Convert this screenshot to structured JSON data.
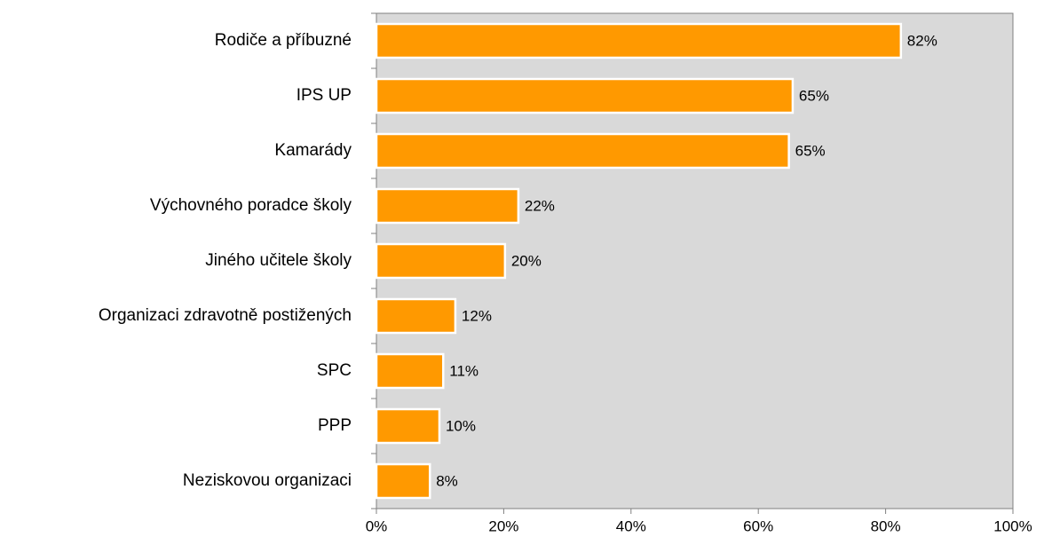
{
  "chart_data": {
    "type": "barh",
    "categories": [
      "Rodiče a příbuzné",
      "IPS UP",
      "Kamarády",
      "Výchovného poradce školy",
      "Jiného učitele školy",
      "Organizaci zdravotně postižených",
      "SPC",
      "PPP",
      "Neziskovou organizaci"
    ],
    "values": [
      82.4,
      65.4,
      64.8,
      22.3,
      20.2,
      12.4,
      10.5,
      9.9,
      8.4
    ],
    "value_labels": [
      "82%",
      "65%",
      "65%",
      "22%",
      "20%",
      "12%",
      "11%",
      "10%",
      "8%"
    ],
    "color": "#ff9900",
    "xlim": [
      0,
      100
    ],
    "xticks": [
      {
        "value": 0,
        "label": "0%"
      },
      {
        "value": 20,
        "label": "20%"
      },
      {
        "value": 40,
        "label": "40%"
      },
      {
        "value": 60,
        "label": "60%"
      },
      {
        "value": 80,
        "label": "80%"
      },
      {
        "value": 100,
        "label": "100%"
      }
    ]
  }
}
